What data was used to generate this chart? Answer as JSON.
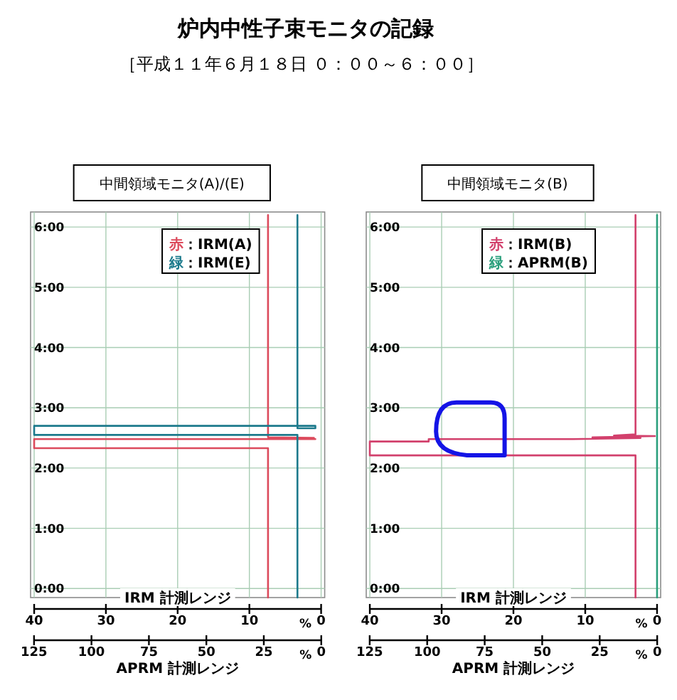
{
  "chart_data": [
    {
      "type": "other",
      "title": "炉内中性子束モニタの記録",
      "subtitle": "［平成１１年６月１８日 ０：００～６：００］"
    },
    {
      "type": "line",
      "title": "中間領域モニタ(A)/(E)",
      "xlabel": "IRM 計測レンジ",
      "x2label": "APRM 計測レンジ",
      "xlim": [
        40.5,
        -0.5
      ],
      "xticks": [
        40,
        30,
        20,
        10,
        0
      ],
      "x2lim": [
        126.5,
        -1.5
      ],
      "x2ticks": [
        125,
        100,
        75,
        50,
        25,
        0
      ],
      "ylim": [
        -0.15,
        6.25
      ],
      "yticks": [
        {
          "value": 0,
          "label": "0:00"
        },
        {
          "value": 1,
          "label": "1:00"
        },
        {
          "value": 2,
          "label": "2:00"
        },
        {
          "value": 3,
          "label": "3:00"
        },
        {
          "value": 4,
          "label": "4:00"
        },
        {
          "value": 5,
          "label": "5:00"
        },
        {
          "value": 6,
          "label": "6:00"
        }
      ],
      "grid": true,
      "legend": "top right",
      "annotations": [
        "%",
        "%"
      ],
      "series": [
        {
          "name": "赤：IRM(A)",
          "color": "#dc4a5c",
          "x": [
            7.4,
            7.4,
            40,
            40,
            0.8,
            5,
            1.0,
            7.4,
            7.4
          ],
          "values": [
            -0.15,
            2.33,
            2.33,
            2.48,
            2.48,
            2.49,
            2.5,
            2.51,
            6.2
          ]
        },
        {
          "name": "緑：IRM(E)",
          "color": "#1c7a8c",
          "x": [
            3.3,
            3.3,
            40,
            40,
            0.8,
            0.8,
            3.3,
            3.3
          ],
          "values": [
            -0.15,
            2.55,
            2.55,
            2.7,
            2.7,
            2.66,
            2.66,
            6.2
          ]
        }
      ]
    },
    {
      "type": "line",
      "title": "中間領域モニタ(B)",
      "xlabel": "IRM 計測レンジ",
      "x2label": "APRM 計測レンジ",
      "xlim": [
        40.5,
        -0.5
      ],
      "xticks": [
        40,
        30,
        20,
        10,
        0
      ],
      "x2lim": [
        126.5,
        -1.5
      ],
      "x2ticks": [
        125,
        100,
        75,
        50,
        25,
        0
      ],
      "ylim": [
        -0.15,
        6.25
      ],
      "yticks": [
        {
          "value": 0,
          "label": "0:00"
        },
        {
          "value": 1,
          "label": "1:00"
        },
        {
          "value": 2,
          "label": "2:00"
        },
        {
          "value": 3,
          "label": "3:00"
        },
        {
          "value": 4,
          "label": "4:00"
        },
        {
          "value": 5,
          "label": "5:00"
        },
        {
          "value": 6,
          "label": "6:00"
        }
      ],
      "grid": true,
      "legend": "top right",
      "annotations": [
        "%",
        "%"
      ],
      "series": [
        {
          "name": "赤：IRM(B)",
          "color": "#d2406c",
          "x": [
            3.0,
            3.0,
            40,
            40,
            31.8,
            31.8,
            11.7,
            2.3,
            9,
            0.3,
            6,
            3.0,
            3.0
          ],
          "values": [
            -0.15,
            2.21,
            2.21,
            2.44,
            2.44,
            2.48,
            2.48,
            2.5,
            2.51,
            2.53,
            2.54,
            2.56,
            6.2
          ]
        },
        {
          "name": "緑：APRM(B)",
          "color": "#2a9f7c",
          "x": [
            0,
            0
          ],
          "values": [
            -0.15,
            6.2
          ]
        }
      ]
    }
  ]
}
